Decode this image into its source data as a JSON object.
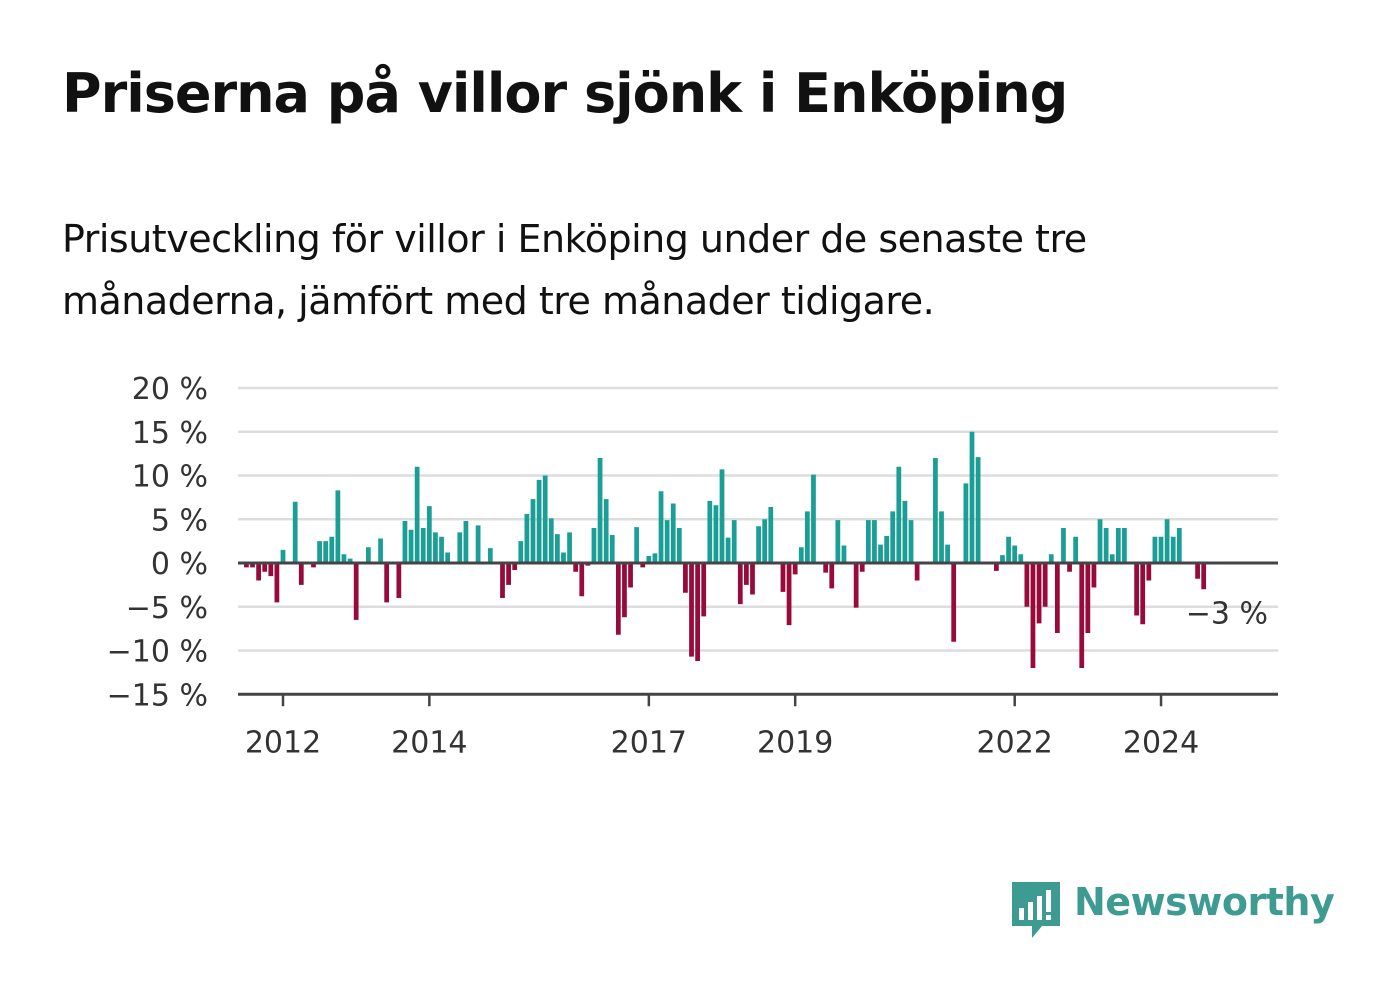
{
  "title": "Priserna på villor sjönk i Enköping",
  "subtitle": "Prisutveckling för villor i Enköping under de senaste tre månaderna, jämfört med tre månader tidigare.",
  "brand": {
    "name": "Newsworthy",
    "icon": "newsworthy-logo-icon",
    "color": "#3d9b92"
  },
  "colors": {
    "positive": "#1a9e96",
    "negative": "#970a3a",
    "grid": "#dddddd",
    "axis": "#444444"
  },
  "chart_data": {
    "type": "bar",
    "x_start": 2011.5,
    "x_step": 0.08333,
    "values": [
      -0.5,
      -0.5,
      -2,
      -1,
      -1.5,
      -4.5,
      1.5,
      0,
      7,
      -2.5,
      0,
      -0.5,
      2.5,
      2.5,
      3,
      8.3,
      1,
      0.5,
      -6.5,
      0,
      1.8,
      0,
      2.8,
      -4.5,
      0,
      -4,
      4.8,
      3.8,
      11,
      4,
      6.5,
      3.5,
      3,
      1.2,
      0,
      3.5,
      4.8,
      0,
      4.3,
      0,
      1.7,
      0,
      -4,
      -2.5,
      -0.8,
      2.5,
      5.6,
      7.3,
      9.5,
      10,
      5.1,
      3.3,
      1.2,
      3.5,
      -1,
      -3.8,
      -0.3,
      4,
      12,
      7.3,
      3.2,
      -8.2,
      -6.2,
      -2.8,
      4.1,
      -0.5,
      0.8,
      1.1,
      8.2,
      4.9,
      6.8,
      4,
      -3.4,
      -10.7,
      -11.2,
      -6.1,
      7.1,
      6.6,
      10.7,
      2.9,
      4.9,
      -4.7,
      -2.5,
      -3.6,
      4.2,
      5,
      6.4,
      0,
      -3.3,
      -7.1,
      -1.3,
      1.8,
      5.9,
      10.1,
      0,
      -1.1,
      -2.9,
      4.9,
      2,
      0,
      -5.1,
      -1,
      4.9,
      4.9,
      2.1,
      3.1,
      5.9,
      11,
      7.1,
      4.9,
      -2,
      0,
      0,
      12,
      5.9,
      2.1,
      -9,
      0,
      9.1,
      15,
      12.1,
      0,
      0,
      -0.9,
      0.9,
      3,
      2,
      1,
      -5,
      -12,
      -6.9,
      -5,
      1,
      -8,
      4,
      -1,
      3,
      -12,
      -8,
      -2.8,
      5,
      4,
      1,
      4,
      4,
      0,
      -6,
      -7,
      -2,
      3,
      3,
      5,
      3,
      4,
      0,
      0,
      -1.8,
      -3
    ],
    "ylim": [
      -15,
      20
    ],
    "y_ticks": [
      20,
      15,
      10,
      5,
      0,
      -5,
      -10,
      -15
    ],
    "y_tick_labels": [
      "20 %",
      "15 %",
      "10 %",
      "5 %",
      "0 %",
      "−5 %",
      "−10 %",
      "−15 %"
    ],
    "x_ticks": [
      2012,
      2014,
      2017,
      2019,
      2022,
      2024
    ],
    "x_tick_labels": [
      "2012",
      "2014",
      "2017",
      "2019",
      "2022",
      "2024"
    ],
    "last_value_label": "−3 %",
    "grid": true,
    "legend": "none"
  }
}
